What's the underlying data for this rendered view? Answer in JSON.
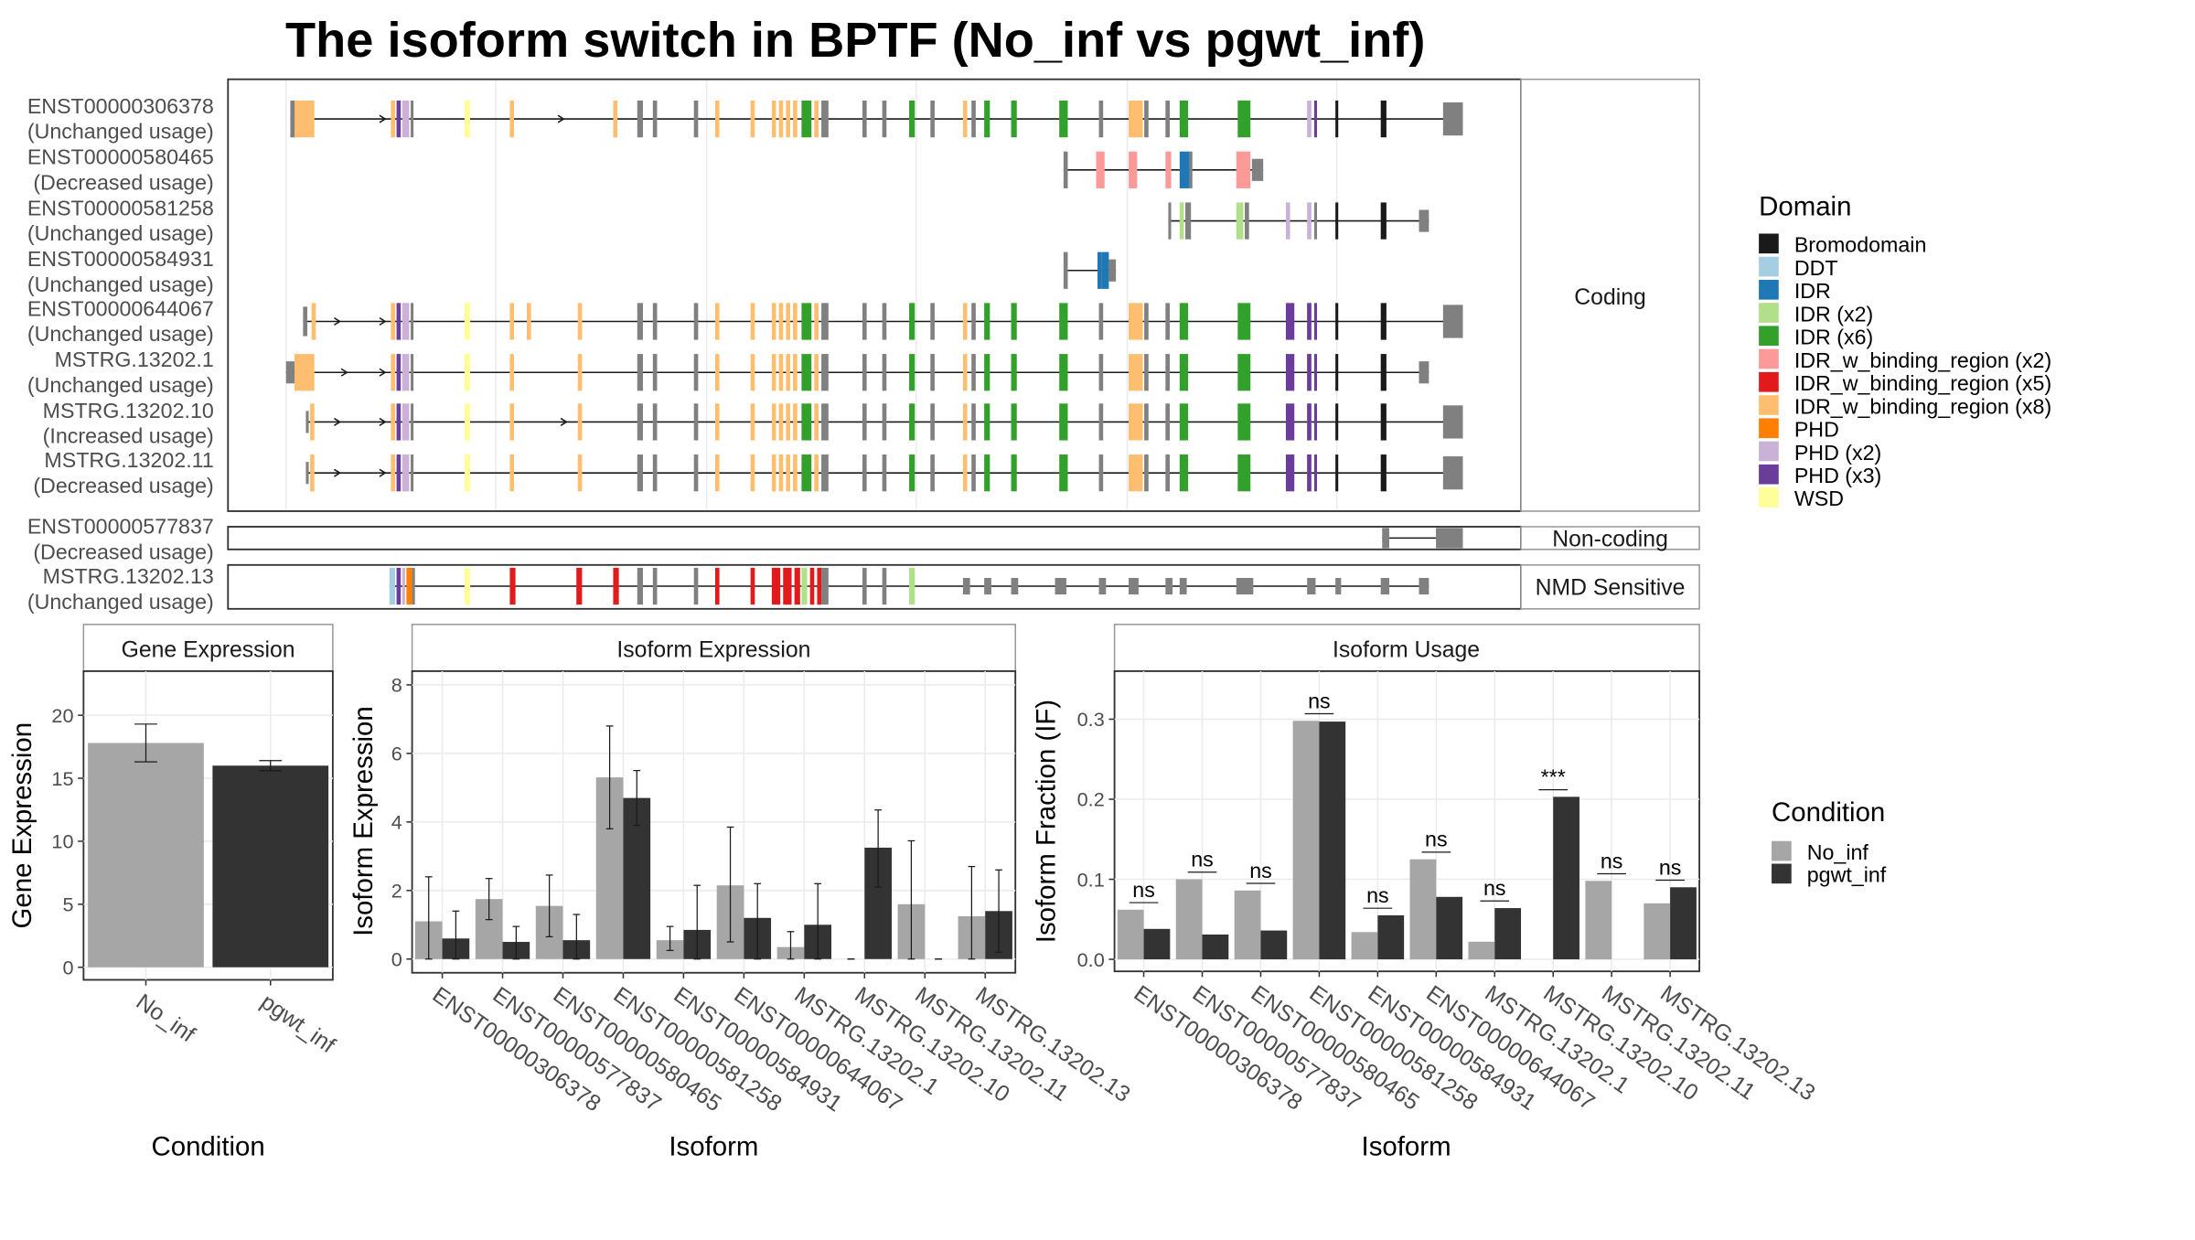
{
  "title": "The isoform switch in BPTF (No_inf vs pgwt_inf)",
  "colors": {
    "Bromodomain": "#1a1a1a",
    "DDT": "#a6cee3",
    "IDR": "#1f78b4",
    "IDR (x2)": "#b2df8a",
    "IDR (x6)": "#33a02c",
    "IDR_w_binding_region (x2)": "#fb9a99",
    "IDR_w_binding_region (x5)": "#e31a1c",
    "IDR_w_binding_region (x8)": "#fdbf6f",
    "PHD": "#ff7f00",
    "PHD (x2)": "#cab2d6",
    "PHD (x3)": "#6a3d9a",
    "WSD": "#ffff99",
    "none": "#808080",
    "No_inf": "#a6a6a6",
    "pgwt_inf": "#333333"
  },
  "domain_legend": {
    "title": "Domain",
    "items": [
      "Bromodomain",
      "DDT",
      "IDR",
      "IDR (x2)",
      "IDR (x6)",
      "IDR_w_binding_region (x2)",
      "IDR_w_binding_region (x5)",
      "IDR_w_binding_region (x8)",
      "PHD",
      "PHD (x2)",
      "PHD (x3)",
      "WSD"
    ]
  },
  "condition_legend": {
    "title": "Condition",
    "items": [
      "No_inf",
      "pgwt_inf"
    ]
  },
  "panel_strips": {
    "coding": "Coding",
    "noncoding": "Non-coding",
    "nmd": "NMD Sensitive"
  },
  "transcripts": [
    {
      "id": "ENST00000306378",
      "usage": "(Unchanged usage)",
      "group": "coding"
    },
    {
      "id": "ENST00000580465",
      "usage": "(Decreased usage)",
      "group": "coding"
    },
    {
      "id": "ENST00000581258",
      "usage": "(Unchanged usage)",
      "group": "coding"
    },
    {
      "id": "ENST00000584931",
      "usage": "(Unchanged usage)",
      "group": "coding"
    },
    {
      "id": "ENST00000644067",
      "usage": "(Unchanged usage)",
      "group": "coding"
    },
    {
      "id": "MSTRG.13202.1",
      "usage": "(Unchanged usage)",
      "group": "coding"
    },
    {
      "id": "MSTRG.13202.10",
      "usage": "(Increased usage)",
      "group": "coding"
    },
    {
      "id": "MSTRG.13202.11",
      "usage": "(Decreased usage)",
      "group": "coding"
    },
    {
      "id": "ENST00000577837",
      "usage": "(Decreased usage)",
      "group": "noncoding"
    },
    {
      "id": "MSTRG.13202.13",
      "usage": "(Unchanged usage)",
      "group": "nmd"
    }
  ],
  "chart_data": [
    {
      "type": "bar",
      "title": "Gene Expression",
      "xlabel": "Condition",
      "ylabel": "Gene Expression",
      "categories": [
        "No_inf",
        "pgwt_inf"
      ],
      "values": [
        17.8,
        16.0
      ],
      "error_low": [
        16.3,
        15.6
      ],
      "error_high": [
        19.3,
        16.4
      ],
      "ylim": [
        -1,
        23.5
      ],
      "yticks": [
        0,
        5,
        10,
        15,
        20
      ]
    },
    {
      "type": "bar",
      "title": "Isoform Expression",
      "xlabel": "Isoform",
      "ylabel": "Isoform Expression",
      "categories": [
        "ENST00000306378",
        "ENST00000577837",
        "ENST00000580465",
        "ENST00000581258",
        "ENST00000584931",
        "ENST00000644067",
        "MSTRG.13202.1",
        "MSTRG.13202.10",
        "MSTRG.13202.11",
        "MSTRG.13202.13"
      ],
      "series": [
        {
          "name": "No_inf",
          "values": [
            1.1,
            1.75,
            1.55,
            5.3,
            0.55,
            2.15,
            0.35,
            0.0,
            1.6,
            1.25
          ],
          "error_low": [
            0.0,
            1.15,
            0.65,
            3.8,
            0.25,
            0.5,
            0.0,
            0.0,
            0.0,
            0.0
          ],
          "error_high": [
            2.4,
            2.35,
            2.45,
            6.8,
            0.95,
            3.85,
            0.8,
            0.0,
            3.45,
            2.7
          ]
        },
        {
          "name": "pgwt_inf",
          "values": [
            0.6,
            0.5,
            0.55,
            4.7,
            0.85,
            1.2,
            1.0,
            3.25,
            0.0,
            1.4
          ],
          "error_low": [
            0.0,
            0.0,
            0.0,
            3.9,
            0.0,
            0.0,
            0.0,
            2.1,
            0.0,
            0.2
          ],
          "error_high": [
            1.4,
            0.95,
            1.3,
            5.5,
            2.15,
            2.2,
            2.2,
            4.35,
            0.0,
            2.6
          ]
        }
      ],
      "ylim": [
        -0.4,
        8.4
      ],
      "yticks": [
        0,
        2,
        4,
        6,
        8
      ]
    },
    {
      "type": "bar",
      "title": "Isoform Usage",
      "xlabel": "Isoform",
      "ylabel": "Isoform Fraction (IF)",
      "categories": [
        "ENST00000306378",
        "ENST00000577837",
        "ENST00000580465",
        "ENST00000581258",
        "ENST00000584931",
        "ENST00000644067",
        "MSTRG.13202.1",
        "MSTRG.13202.10",
        "MSTRG.13202.11",
        "MSTRG.13202.13"
      ],
      "series": [
        {
          "name": "No_inf",
          "values": [
            0.062,
            0.1,
            0.086,
            0.298,
            0.034,
            0.125,
            0.022,
            0.0,
            0.098,
            0.07
          ]
        },
        {
          "name": "pgwt_inf",
          "values": [
            0.038,
            0.031,
            0.036,
            0.297,
            0.055,
            0.078,
            0.064,
            0.203,
            0.0,
            0.09
          ]
        }
      ],
      "significance": [
        "ns",
        "ns",
        "ns",
        "ns",
        "ns",
        "ns",
        "ns",
        "***",
        "ns",
        "ns"
      ],
      "ylim": [
        -0.015,
        0.36
      ],
      "yticks": [
        0.0,
        0.1,
        0.2,
        0.3
      ],
      "ytick_labels": [
        "0.0",
        "0.1",
        "0.2",
        "0.3"
      ]
    }
  ]
}
